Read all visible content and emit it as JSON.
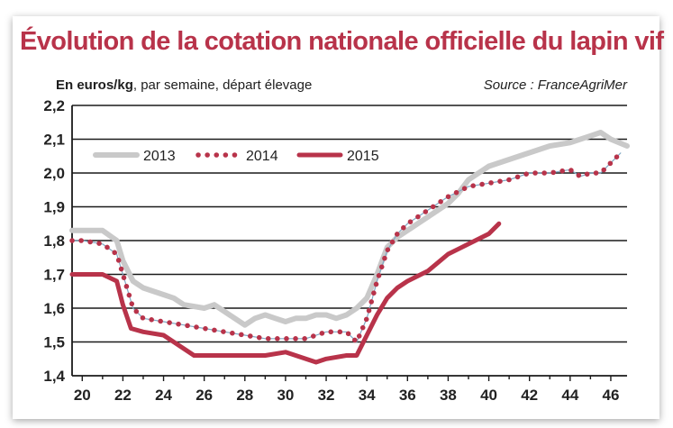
{
  "colors": {
    "title": "#b8334a",
    "series_2013": "#c9c9c9",
    "series_2014": "#b8334a",
    "series_2014_thin": "#7fa8c4",
    "series_2015": "#b8334a",
    "grid": "#1a1a1a",
    "axis": "#1a1a1a"
  },
  "header": {
    "title": "Évolution de la cotation nationale officielle du lapin vif",
    "unit_label": "En euros/kg",
    "period_label": ", par semaine, départ élevage",
    "source": "Source : FranceAgriMer"
  },
  "chart_data": {
    "type": "line",
    "title": "Évolution de la cotation nationale officielle du lapin vif",
    "ylabel": "En euros/kg, par semaine, départ élevage",
    "xlabel": "",
    "xlim": [
      19.5,
      46.8
    ],
    "ylim": [
      1.4,
      2.2
    ],
    "x_ticks": [
      20,
      22,
      24,
      26,
      28,
      30,
      32,
      34,
      36,
      38,
      40,
      42,
      44,
      46
    ],
    "y_ticks": [
      "1,4",
      "1,5",
      "1,6",
      "1,7",
      "1,8",
      "1,9",
      "2,0",
      "2,1",
      "2,2"
    ],
    "y_tick_values": [
      1.4,
      1.5,
      1.6,
      1.7,
      1.8,
      1.9,
      2.0,
      2.1,
      2.2
    ],
    "grid": "horizontal",
    "legend_position": "top-left",
    "series": [
      {
        "name": "2013",
        "style": "solid-grey",
        "points": [
          [
            19.5,
            1.83
          ],
          [
            20,
            1.83
          ],
          [
            21,
            1.83
          ],
          [
            21.7,
            1.8
          ],
          [
            22,
            1.74
          ],
          [
            22.5,
            1.68
          ],
          [
            23,
            1.66
          ],
          [
            24,
            1.64
          ],
          [
            24.5,
            1.63
          ],
          [
            25,
            1.61
          ],
          [
            26,
            1.6
          ],
          [
            26.5,
            1.61
          ],
          [
            27,
            1.59
          ],
          [
            27.5,
            1.57
          ],
          [
            28,
            1.55
          ],
          [
            28.5,
            1.57
          ],
          [
            29,
            1.58
          ],
          [
            29.5,
            1.57
          ],
          [
            30,
            1.56
          ],
          [
            30.5,
            1.57
          ],
          [
            31,
            1.57
          ],
          [
            31.5,
            1.58
          ],
          [
            32,
            1.58
          ],
          [
            32.5,
            1.57
          ],
          [
            33,
            1.58
          ],
          [
            33.5,
            1.6
          ],
          [
            34,
            1.63
          ],
          [
            34.5,
            1.7
          ],
          [
            35,
            1.78
          ],
          [
            35.5,
            1.81
          ],
          [
            36,
            1.83
          ],
          [
            36.5,
            1.85
          ],
          [
            37,
            1.87
          ],
          [
            38,
            1.91
          ],
          [
            38.5,
            1.94
          ],
          [
            39,
            1.98
          ],
          [
            40,
            2.02
          ],
          [
            41,
            2.04
          ],
          [
            42,
            2.06
          ],
          [
            43,
            2.08
          ],
          [
            44,
            2.09
          ],
          [
            45,
            2.11
          ],
          [
            45.5,
            2.12
          ],
          [
            46,
            2.1
          ],
          [
            46.8,
            2.08
          ]
        ]
      },
      {
        "name": "2014",
        "style": "dotted-red",
        "points": [
          [
            19.5,
            1.8
          ],
          [
            20,
            1.8
          ],
          [
            21,
            1.79
          ],
          [
            21.7,
            1.76
          ],
          [
            22,
            1.7
          ],
          [
            22.5,
            1.6
          ],
          [
            23,
            1.57
          ],
          [
            24,
            1.56
          ],
          [
            25,
            1.55
          ],
          [
            26,
            1.54
          ],
          [
            27,
            1.53
          ],
          [
            28,
            1.52
          ],
          [
            29,
            1.51
          ],
          [
            30,
            1.51
          ],
          [
            31,
            1.51
          ],
          [
            32,
            1.53
          ],
          [
            33,
            1.53
          ],
          [
            33.5,
            1.5
          ],
          [
            34,
            1.57
          ],
          [
            34.5,
            1.68
          ],
          [
            35,
            1.77
          ],
          [
            35.5,
            1.82
          ],
          [
            36,
            1.85
          ],
          [
            36.5,
            1.87
          ],
          [
            37,
            1.89
          ],
          [
            38,
            1.93
          ],
          [
            39,
            1.96
          ],
          [
            40,
            1.97
          ],
          [
            41,
            1.98
          ],
          [
            42,
            2.0
          ],
          [
            43,
            2.0
          ],
          [
            44,
            2.01
          ],
          [
            44.5,
            1.99
          ],
          [
            45,
            2.0
          ],
          [
            45.5,
            2.0
          ],
          [
            46,
            2.03
          ],
          [
            46.5,
            2.06
          ]
        ]
      },
      {
        "name": "2015",
        "style": "solid-red",
        "points": [
          [
            19.5,
            1.7
          ],
          [
            20,
            1.7
          ],
          [
            21,
            1.7
          ],
          [
            21.7,
            1.68
          ],
          [
            22,
            1.61
          ],
          [
            22.4,
            1.54
          ],
          [
            23,
            1.53
          ],
          [
            24,
            1.52
          ],
          [
            25,
            1.48
          ],
          [
            25.5,
            1.46
          ],
          [
            26,
            1.46
          ],
          [
            27,
            1.46
          ],
          [
            28,
            1.46
          ],
          [
            29,
            1.46
          ],
          [
            30,
            1.47
          ],
          [
            31,
            1.45
          ],
          [
            31.5,
            1.44
          ],
          [
            32,
            1.45
          ],
          [
            33,
            1.46
          ],
          [
            33.5,
            1.46
          ],
          [
            34,
            1.52
          ],
          [
            34.5,
            1.58
          ],
          [
            35,
            1.63
          ],
          [
            35.5,
            1.66
          ],
          [
            36,
            1.68
          ],
          [
            37,
            1.71
          ],
          [
            38,
            1.76
          ],
          [
            39,
            1.79
          ],
          [
            40,
            1.82
          ],
          [
            40.5,
            1.85
          ]
        ]
      }
    ]
  }
}
